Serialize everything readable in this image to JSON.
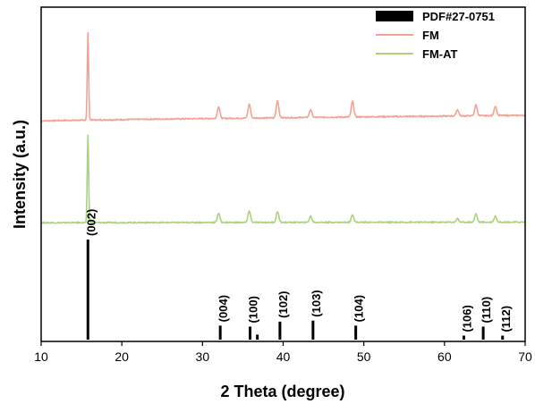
{
  "chart_data": {
    "type": "line",
    "xlabel": "2 Theta (degree)",
    "ylabel": "Intensity (a.u.)",
    "xlim": [
      10,
      70
    ],
    "x_ticks": [
      10,
      20,
      30,
      40,
      50,
      60,
      70
    ],
    "y_ticks_shown": false,
    "grid": false,
    "legend_position": "top-right",
    "legend": [
      {
        "label": "PDF#27-0751",
        "style": "bar",
        "color": "#000000"
      },
      {
        "label": "FM",
        "style": "line",
        "color": "#f4a294"
      },
      {
        "label": "FM-AT",
        "style": "line",
        "color": "#a8d47c"
      }
    ],
    "series": [
      {
        "name": "FM",
        "color": "#f4a294",
        "baseline_start": 0.22,
        "baseline_end": 0.4,
        "peaks": [
          [
            15.8,
            2.8
          ],
          [
            32.0,
            0.38
          ],
          [
            35.8,
            0.45
          ],
          [
            39.3,
            0.55
          ],
          [
            43.4,
            0.25
          ],
          [
            48.6,
            0.5
          ],
          [
            61.6,
            0.2
          ],
          [
            63.9,
            0.35
          ],
          [
            66.3,
            0.3
          ]
        ]
      },
      {
        "name": "FM-AT",
        "color": "#a8d47c",
        "baseline_start": 0.2,
        "baseline_end": 0.22,
        "peaks": [
          [
            15.8,
            2.9
          ],
          [
            32.0,
            0.3
          ],
          [
            35.8,
            0.38
          ],
          [
            39.3,
            0.36
          ],
          [
            43.4,
            0.2
          ],
          [
            48.6,
            0.26
          ],
          [
            61.6,
            0.12
          ],
          [
            63.9,
            0.28
          ],
          [
            66.3,
            0.2
          ]
        ]
      }
    ],
    "reference": {
      "name": "PDF#27-0751",
      "color": "#000000",
      "lines": [
        {
          "x": 15.8,
          "intensity": 100,
          "label": "(002)"
        },
        {
          "x": 32.2,
          "intensity": 14,
          "label": "(004)"
        },
        {
          "x": 35.9,
          "intensity": 13,
          "label": "(100)"
        },
        {
          "x": 36.8,
          "intensity": 5,
          "label": ""
        },
        {
          "x": 39.6,
          "intensity": 18,
          "label": "(102)"
        },
        {
          "x": 43.7,
          "intensity": 19,
          "label": "(103)"
        },
        {
          "x": 49.0,
          "intensity": 14,
          "label": "(104)"
        },
        {
          "x": 62.4,
          "intensity": 4,
          "label": "(106)"
        },
        {
          "x": 64.8,
          "intensity": 13,
          "label": "(110)"
        },
        {
          "x": 67.2,
          "intensity": 4,
          "label": "(112)"
        }
      ]
    }
  }
}
